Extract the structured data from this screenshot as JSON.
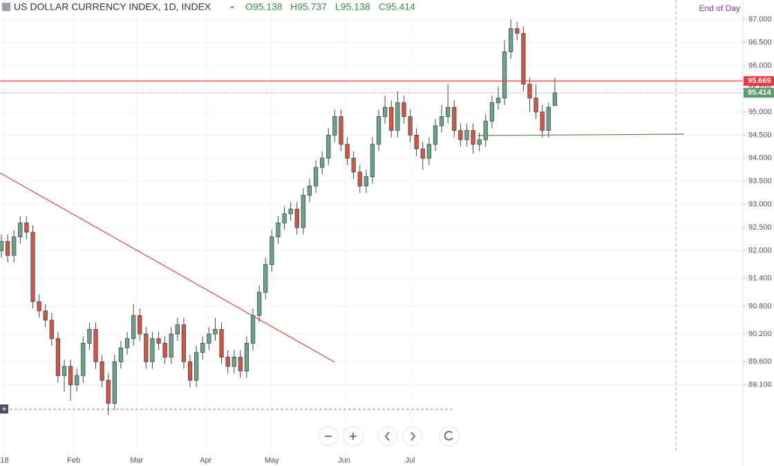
{
  "chart_data": {
    "type": "candlestick",
    "title": "US DOLLAR CURRENCY INDEX, 1D, INDEX",
    "ohlc_labels": [
      "O95.138",
      "H95.737",
      "L95.138",
      "C95.414"
    ],
    "session_label": "End of Day",
    "up_color": "#6ba583",
    "down_color": "#d75442",
    "x": [
      0,
      2,
      4,
      6,
      8,
      10,
      12,
      14,
      16,
      18,
      20,
      22,
      24,
      26,
      28,
      30,
      32,
      34,
      36,
      38,
      40,
      42,
      44,
      46,
      48,
      50,
      52,
      54,
      56,
      58,
      60,
      62,
      64,
      66,
      68,
      70,
      72,
      74,
      76,
      78,
      80,
      82,
      84,
      86,
      88,
      90,
      92,
      94,
      96,
      98,
      100,
      102,
      104,
      106,
      108,
      110,
      112,
      114,
      116,
      118,
      120,
      122,
      124,
      126,
      128,
      130,
      132,
      134,
      136,
      138,
      140,
      142,
      144,
      146,
      148,
      150,
      152,
      154,
      156,
      158,
      160,
      162,
      164,
      166,
      168,
      170,
      172,
      174,
      176
    ],
    "open": [
      92.0,
      92.2,
      91.9,
      92.3,
      92.6,
      92.4,
      90.9,
      90.7,
      90.5,
      90.1,
      89.3,
      89.5,
      89.1,
      89.3,
      90.0,
      90.3,
      89.6,
      89.2,
      88.7,
      89.6,
      89.9,
      90.1,
      90.6,
      90.2,
      89.6,
      90.1,
      90.0,
      89.7,
      90.2,
      90.4,
      89.6,
      89.2,
      89.8,
      90.0,
      90.2,
      90.3,
      89.7,
      89.5,
      89.7,
      89.4,
      90.0,
      90.6,
      91.1,
      91.7,
      92.3,
      92.6,
      92.8,
      92.9,
      92.5,
      93.2,
      93.4,
      93.8,
      94.0,
      94.5,
      94.9,
      94.3,
      94.0,
      93.7,
      93.4,
      93.6,
      94.3,
      94.9,
      95.1,
      94.6,
      95.2,
      94.9,
      94.5,
      94.2,
      94.0,
      94.3,
      94.7,
      94.9,
      95.1,
      94.6,
      94.4,
      94.6,
      94.3,
      94.4,
      94.8,
      95.2,
      95.3,
      96.3,
      96.8,
      96.7,
      95.6,
      95.3,
      95.0,
      94.6,
      95.138
    ],
    "high": [
      92.35,
      92.35,
      92.45,
      92.75,
      92.75,
      92.55,
      91.05,
      90.85,
      90.65,
      90.25,
      89.65,
      89.65,
      89.45,
      90.15,
      90.45,
      90.45,
      89.75,
      89.35,
      89.75,
      90.05,
      90.25,
      90.85,
      90.75,
      90.35,
      90.25,
      90.25,
      90.15,
      90.35,
      90.55,
      90.55,
      89.75,
      89.95,
      90.15,
      90.35,
      90.55,
      90.45,
      89.85,
      89.85,
      89.85,
      90.15,
      90.75,
      91.25,
      91.85,
      92.45,
      92.75,
      92.95,
      93.05,
      93.05,
      93.35,
      93.55,
      93.95,
      94.15,
      94.65,
      95.05,
      95.05,
      94.45,
      94.15,
      93.85,
      93.75,
      94.45,
      95.05,
      95.35,
      95.25,
      95.45,
      95.35,
      95.05,
      94.65,
      94.35,
      94.45,
      94.85,
      95.15,
      95.6,
      95.25,
      94.75,
      94.75,
      94.75,
      94.55,
      94.95,
      95.35,
      95.55,
      96.55,
      97.0,
      96.95,
      96.85,
      95.75,
      95.6,
      95.15,
      95.2,
      95.737
    ],
    "low": [
      91.85,
      91.75,
      91.75,
      92.15,
      92.25,
      90.75,
      90.55,
      90.35,
      89.95,
      89.15,
      88.95,
      88.75,
      88.95,
      89.15,
      89.85,
      89.45,
      89.05,
      88.45,
      88.55,
      89.45,
      89.75,
      89.95,
      90.05,
      89.45,
      89.45,
      89.85,
      89.55,
      89.55,
      90.05,
      89.45,
      89.05,
      89.05,
      89.65,
      89.85,
      90.05,
      89.55,
      89.35,
      89.35,
      89.25,
      89.25,
      89.85,
      90.45,
      90.95,
      91.55,
      92.15,
      92.45,
      92.65,
      92.35,
      92.35,
      93.05,
      93.25,
      93.65,
      93.85,
      94.35,
      94.15,
      93.85,
      93.55,
      93.25,
      93.25,
      93.45,
      94.15,
      94.75,
      94.45,
      94.45,
      94.75,
      94.35,
      94.05,
      93.75,
      93.85,
      94.15,
      94.55,
      94.75,
      94.45,
      94.25,
      94.25,
      94.1,
      94.15,
      94.25,
      94.65,
      95.05,
      95.15,
      96.15,
      96.55,
      95.45,
      95.0,
      94.85,
      94.45,
      94.45,
      95.138
    ],
    "close": [
      92.2,
      91.9,
      92.3,
      92.6,
      92.4,
      90.9,
      90.7,
      90.5,
      90.1,
      89.3,
      89.5,
      89.1,
      89.3,
      90.0,
      90.3,
      89.6,
      89.2,
      88.7,
      89.6,
      89.9,
      90.1,
      90.6,
      90.2,
      89.6,
      90.1,
      90.0,
      89.7,
      90.2,
      90.4,
      89.6,
      89.2,
      89.8,
      90.0,
      90.2,
      90.3,
      89.7,
      89.5,
      89.7,
      89.4,
      90.0,
      90.6,
      91.1,
      91.7,
      92.3,
      92.6,
      92.8,
      92.9,
      92.5,
      93.2,
      93.4,
      93.8,
      94.0,
      94.5,
      94.9,
      94.3,
      94.0,
      93.7,
      93.4,
      93.6,
      94.3,
      94.9,
      95.1,
      94.6,
      95.2,
      94.9,
      94.5,
      94.2,
      94.0,
      94.3,
      94.7,
      94.9,
      95.1,
      94.6,
      94.4,
      94.6,
      94.3,
      94.4,
      94.8,
      95.2,
      95.3,
      96.3,
      96.8,
      96.7,
      95.6,
      95.3,
      95.0,
      94.6,
      95.1,
      95.414
    ],
    "xlim": [
      -0.44,
      235.8
    ],
    "ylim": [
      87.63,
      97.42
    ],
    "xticks": [
      {
        "value": 1,
        "label": "18"
      },
      {
        "value": 23,
        "label": "Feb"
      },
      {
        "value": 43,
        "label": "Mar"
      },
      {
        "value": 65,
        "label": "Apr"
      },
      {
        "value": 86,
        "label": "May"
      },
      {
        "value": 109,
        "label": "Jun"
      },
      {
        "value": 130,
        "label": "Jul"
      }
    ],
    "yticks": [
      {
        "value": 97,
        "label": "97.000"
      },
      {
        "value": 96.5,
        "label": "96.500"
      },
      {
        "value": 96,
        "label": "96.000"
      },
      {
        "value": 95.5,
        "label": "95.500"
      },
      {
        "value": 95,
        "label": "95.000"
      },
      {
        "value": 94.5,
        "label": "94.500"
      },
      {
        "value": 94,
        "label": "94.000"
      },
      {
        "value": 93.5,
        "label": "93.500"
      },
      {
        "value": 93,
        "label": "93.000"
      },
      {
        "value": 92.5,
        "label": "92.500"
      },
      {
        "value": 92,
        "label": "92.000"
      },
      {
        "value": 91.4,
        "label": "91.400"
      },
      {
        "value": 90.8,
        "label": "90.800"
      },
      {
        "value": 90.2,
        "label": "90.200"
      },
      {
        "value": 89.6,
        "label": "89.600"
      },
      {
        "value": 89.1,
        "label": "89.100"
      }
    ],
    "grid": true,
    "hlines": [
      {
        "value": 95.669,
        "color": "#f23645"
      }
    ],
    "last_color": "#5d9b6a",
    "trendlines": [
      {
        "color": "#e0463c",
        "points": [
          [
            -0.4,
            93.68
          ],
          [
            106,
            89.59
          ]
        ]
      },
      {
        "color": "#5a8a4a",
        "points": [
          [
            151.5,
            94.49
          ],
          [
            217.1,
            94.52
          ]
        ]
      }
    ]
  }
}
